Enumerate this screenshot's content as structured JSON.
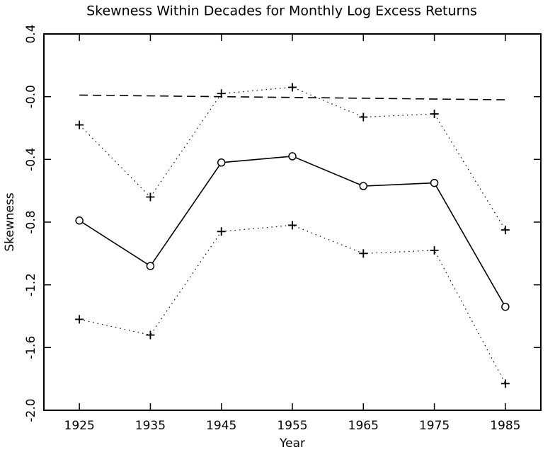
{
  "chart_data": {
    "type": "line",
    "title": "Skewness Within Decades for Monthly Log Excess Returns",
    "x_label": "Year",
    "y_label": "Skewness",
    "x": [
      1925,
      1935,
      1945,
      1955,
      1965,
      1975,
      1985
    ],
    "series": [
      {
        "color": "#000000",
        "style": "solid",
        "marker": "circle",
        "values": [
          -0.79,
          -1.08,
          -0.42,
          -0.38,
          -0.57,
          -0.55,
          -1.34
        ]
      },
      {
        "color": "#000000",
        "style": "dotted",
        "marker": "plus",
        "values": [
          -0.18,
          -0.64,
          0.02,
          0.06,
          -0.13,
          -0.11,
          -0.85
        ]
      },
      {
        "color": "#000000",
        "style": "dotted",
        "marker": "plus",
        "values": [
          -1.42,
          -1.52,
          -0.86,
          -0.82,
          -1.0,
          -0.98,
          -1.83
        ]
      },
      {
        "color": "#000000",
        "style": "dashed",
        "marker": "none",
        "x": [
          1925,
          1985
        ],
        "values": [
          0.01,
          -0.02
        ]
      }
    ],
    "xlim": [
      1920,
      1990
    ],
    "xticks": [
      1925,
      1935,
      1945,
      1955,
      1965,
      1975,
      1985
    ],
    "ylim": [
      -2.0,
      0.4
    ],
    "yticks": [
      {
        "value": -2.0,
        "label": "-2.0"
      },
      -1.6,
      -1.2,
      -0.8,
      -0.4,
      {
        "value": 0,
        "label": "-0.0"
      },
      0.4
    ],
    "grid": false
  }
}
